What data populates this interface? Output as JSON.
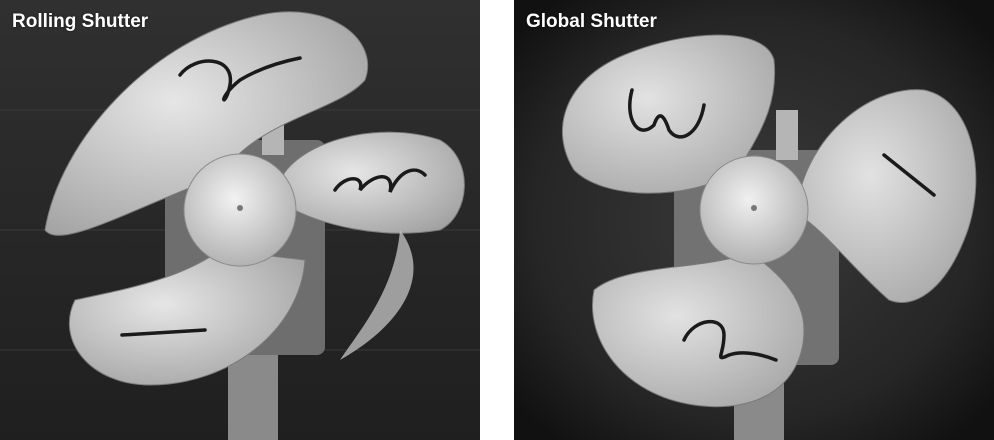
{
  "panels": [
    {
      "caption": "Rolling Shutter",
      "blade_marks": [
        "2",
        "3",
        "1"
      ]
    },
    {
      "caption": "Global Shutter",
      "blade_marks": [
        "3",
        "1",
        "2"
      ]
    }
  ],
  "colors": {
    "background": "#2a2a2a",
    "blade": "#d6d6d6",
    "hub": "#e2e2e2",
    "caption": "#ffffff",
    "separator": "#ffffff"
  }
}
